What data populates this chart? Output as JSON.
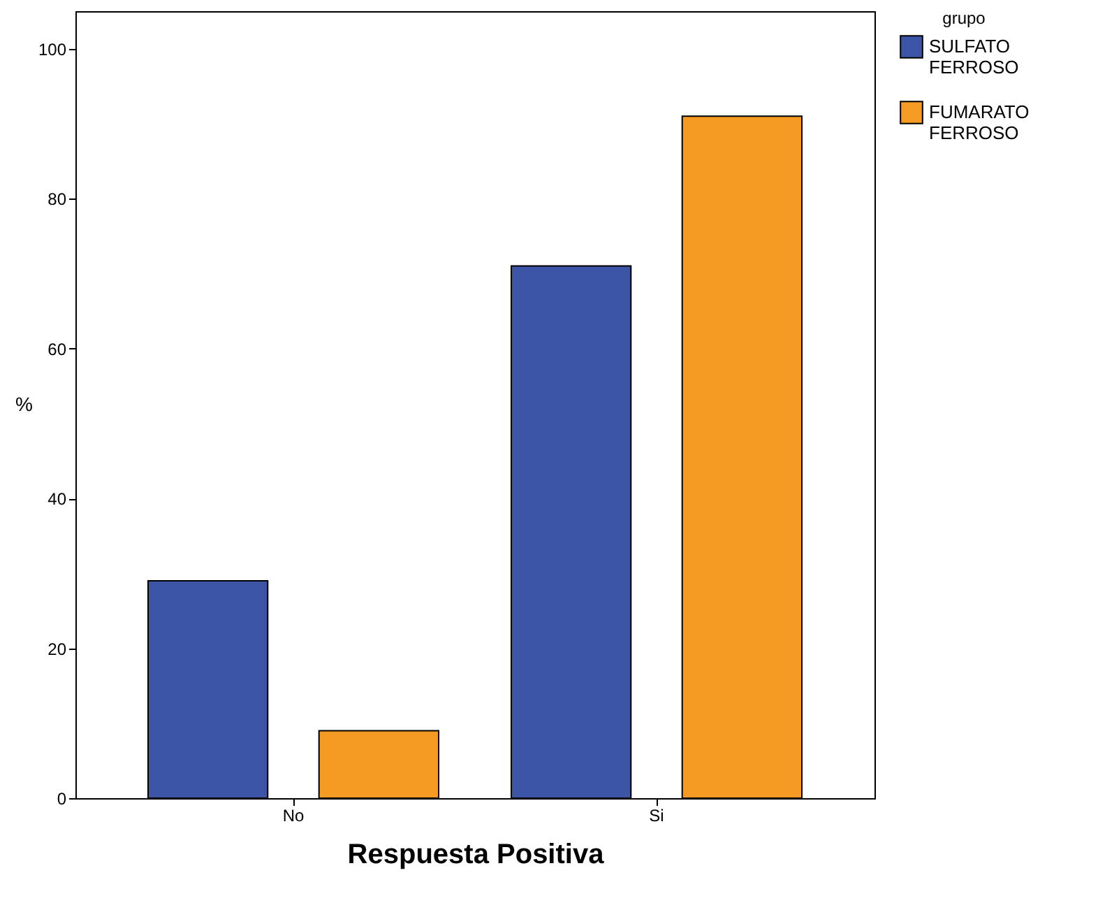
{
  "chart_data": {
    "type": "bar",
    "xlabel": "Respuesta Positiva",
    "ylabel": "%",
    "legend_title": "grupo",
    "categories": [
      "No",
      "Si"
    ],
    "series": [
      {
        "name": "SULFATO FERROSO",
        "color": "#3d55a7",
        "values": [
          29,
          71
        ]
      },
      {
        "name": "FUMARATO FERROSO",
        "color": "#f59a23",
        "values": [
          9,
          91
        ]
      }
    ],
    "ylim": [
      0,
      105
    ],
    "yticks": [
      0,
      20,
      40,
      60,
      80,
      100
    ],
    "grid": false,
    "legend": "right"
  }
}
